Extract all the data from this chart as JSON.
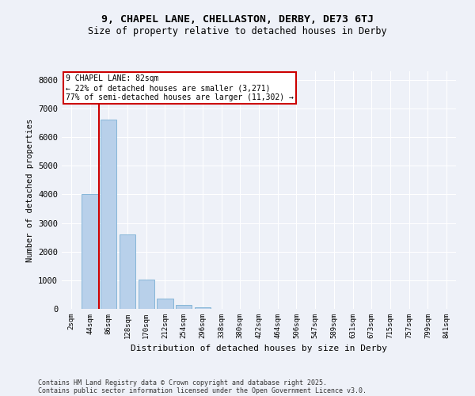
{
  "title1": "9, CHAPEL LANE, CHELLASTON, DERBY, DE73 6TJ",
  "title2": "Size of property relative to detached houses in Derby",
  "xlabel": "Distribution of detached houses by size in Derby",
  "ylabel": "Number of detached properties",
  "categories": [
    "2sqm",
    "44sqm",
    "86sqm",
    "128sqm",
    "170sqm",
    "212sqm",
    "254sqm",
    "296sqm",
    "338sqm",
    "380sqm",
    "422sqm",
    "464sqm",
    "506sqm",
    "547sqm",
    "589sqm",
    "631sqm",
    "673sqm",
    "715sqm",
    "757sqm",
    "799sqm",
    "841sqm"
  ],
  "values": [
    0,
    4020,
    6620,
    2600,
    1010,
    355,
    150,
    50,
    10,
    5,
    2,
    1,
    0,
    0,
    0,
    0,
    0,
    0,
    0,
    0,
    0
  ],
  "bar_color": "#b8d0ea",
  "bar_edge_color": "#7aafd4",
  "vline_color": "#cc0000",
  "vline_x_index": 1.5,
  "annotation_line1": "9 CHAPEL LANE: 82sqm",
  "annotation_line2": "← 22% of detached houses are smaller (3,271)",
  "annotation_line3": "77% of semi-detached houses are larger (11,302) →",
  "annotation_box_color": "#ffffff",
  "annotation_box_edge": "#cc0000",
  "ylim": [
    0,
    8300
  ],
  "yticks": [
    0,
    1000,
    2000,
    3000,
    4000,
    5000,
    6000,
    7000,
    8000
  ],
  "footer1": "Contains HM Land Registry data © Crown copyright and database right 2025.",
  "footer2": "Contains public sector information licensed under the Open Government Licence v3.0.",
  "bg_color": "#eef1f8",
  "grid_color": "#ffffff",
  "plot_bg_color": "#eef1f8"
}
